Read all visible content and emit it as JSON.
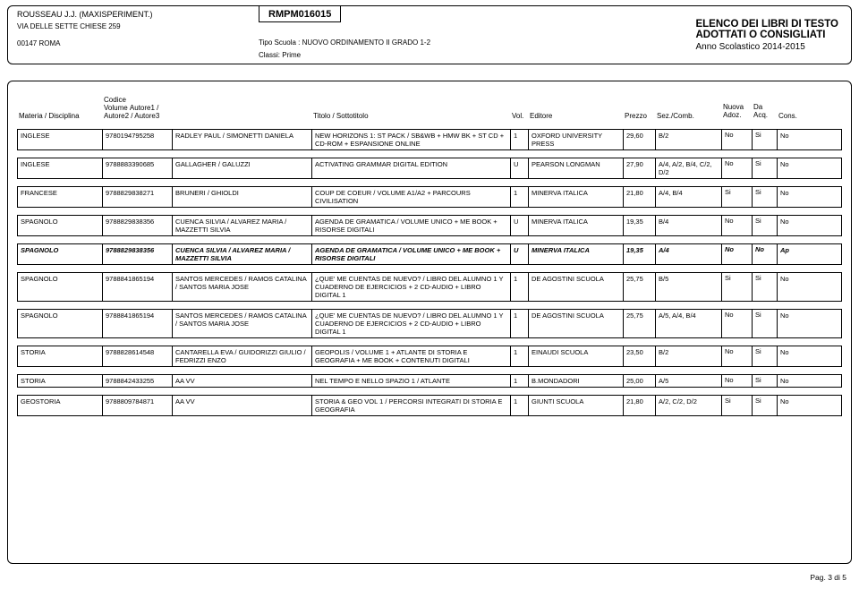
{
  "header": {
    "school_name": "ROUSSEAU J.J. (MAXISPERIMENT.)",
    "address": "VIA DELLE SETTE CHIESE 259",
    "city": "00147   ROMA",
    "code": "RMPM016015",
    "tipo": "Tipo Scuola :  NUOVO ORDINAMENTO II GRADO 1-2",
    "classi": "Classi:  Prime",
    "title1": "ELENCO DEI LIBRI DI TESTO",
    "title2": "ADOTTATI O CONSIGLIATI",
    "anno": "Anno Scolastico 2014-2015"
  },
  "columns": {
    "materia": "Materia / Disciplina",
    "codice": "Codice Volume",
    "autore": "Autore1 / Autore2 / Autore3",
    "titolo": "Titolo / Sottotitolo",
    "vol": "Vol.",
    "editore": "Editore",
    "prezzo": "Prezzo",
    "sez": "Sez./Comb.",
    "nuova1": "Nuova",
    "nuova2": "Adoz.",
    "da1": "Da",
    "da2": "Acq.",
    "cons": "Cons."
  },
  "rows": [
    {
      "mat": "INGLESE",
      "cod": "9780194795258",
      "aut": "RADLEY PAUL / SIMONETTI DANIELA",
      "tit": "NEW HORIZONS 1: ST PACK / SB&WB + HMW BK + ST CD + CD-ROM + ESPANSIONE ONLINE",
      "vol": "1",
      "edi": "OXFORD UNIVERSITY PRESS",
      "pre": "29,60",
      "sez": "B/2",
      "nuo": "No",
      "da": "Si",
      "con": "No",
      "bold": false
    },
    {
      "mat": "INGLESE",
      "cod": "9788883390685",
      "aut": "GALLAGHER / GALUZZI",
      "tit": "ACTIVATING GRAMMAR DIGITAL EDITION",
      "vol": "U",
      "edi": "PEARSON LONGMAN",
      "pre": "27,90",
      "sez": "A/4, A/2, B/4, C/2, D/2",
      "nuo": "No",
      "da": "Si",
      "con": "No",
      "bold": false
    },
    {
      "mat": "FRANCESE",
      "cod": "9788829838271",
      "aut": "BRUNERI / GHIOLDI",
      "tit": "COUP DE COEUR / VOLUME A1/A2 + PARCOURS CIVILISATION",
      "vol": "1",
      "edi": "MINERVA ITALICA",
      "pre": "21,80",
      "sez": "A/4, B/4",
      "nuo": "Si",
      "da": "Si",
      "con": "No",
      "bold": false
    },
    {
      "mat": "SPAGNOLO",
      "cod": "9788829838356",
      "aut": "CUENCA SILVIA / ALVAREZ MARIA / MAZZETTI SILVIA",
      "tit": "AGENDA DE GRAMATICA / VOLUME UNICO + ME BOOK + RISORSE DIGITALI",
      "vol": "U",
      "edi": "MINERVA ITALICA",
      "pre": "19,35",
      "sez": "B/4",
      "nuo": "No",
      "da": "Si",
      "con": "No",
      "bold": false
    },
    {
      "mat": "SPAGNOLO",
      "cod": "9788829838356",
      "aut": "CUENCA SILVIA / ALVAREZ MARIA / MAZZETTI SILVIA",
      "tit": "AGENDA DE GRAMATICA / VOLUME UNICO + ME BOOK + RISORSE DIGITALI",
      "vol": "U",
      "edi": "MINERVA ITALICA",
      "pre": "19,35",
      "sez": "A/4",
      "nuo": "No",
      "da": "No",
      "con": "Ap",
      "bold": true
    },
    {
      "mat": "SPAGNOLO",
      "cod": "9788841865194",
      "aut": "SANTOS MERCEDES / RAMOS CATALINA / SANTOS MARIA JOSE",
      "tit": "¿QUE' ME CUENTAS DE NUEVO? / LIBRO DEL ALUMNO 1 Y CUADERNO DE EJERCICIOS + 2 CD-AUDIO + LIBRO DIGITAL 1",
      "vol": "1",
      "edi": "DE AGOSTINI SCUOLA",
      "pre": "25,75",
      "sez": "B/5",
      "nuo": "Si",
      "da": "Si",
      "con": "No",
      "bold": false
    },
    {
      "mat": "SPAGNOLO",
      "cod": "9788841865194",
      "aut": "SANTOS MERCEDES / RAMOS CATALINA / SANTOS MARIA JOSE",
      "tit": "¿QUE' ME CUENTAS DE NUEVO? / LIBRO DEL ALUMNO 1 Y CUADERNO DE EJERCICIOS + 2 CD-AUDIO + LIBRO DIGITAL 1",
      "vol": "1",
      "edi": "DE AGOSTINI SCUOLA",
      "pre": "25,75",
      "sez": "A/5, A/4, B/4",
      "nuo": "No",
      "da": "Si",
      "con": "No",
      "bold": false
    },
    {
      "mat": "STORIA",
      "cod": "9788828614548",
      "aut": "CANTARELLA EVA / GUIDORIZZI GIULIO / FEDRIZZI ENZO",
      "tit": "GEOPOLIS / VOLUME 1 + ATLANTE DI STORIA E GEOGRAFIA + ME BOOK + CONTENUTI DIGITALI",
      "vol": "1",
      "edi": "EINAUDI SCUOLA",
      "pre": "23,50",
      "sez": "B/2",
      "nuo": "No",
      "da": "Si",
      "con": "No",
      "bold": false
    },
    {
      "mat": "STORIA",
      "cod": "9788842433255",
      "aut": "AA VV",
      "tit": "NEL TEMPO E NELLO SPAZIO 1 / ATLANTE",
      "vol": "1",
      "edi": "B.MONDADORI",
      "pre": "25,00",
      "sez": "A/5",
      "nuo": "No",
      "da": "Si",
      "con": "No",
      "bold": false
    },
    {
      "mat": "GEOSTORIA",
      "cod": "9788809784871",
      "aut": "AA VV",
      "tit": "STORIA & GEO VOL 1 / PERCORSI INTEGRATI DI STORIA E GEOGRAFIA",
      "vol": "1",
      "edi": "GIUNTI SCUOLA",
      "pre": "21,80",
      "sez": "A/2, C/2, D/2",
      "nuo": "Si",
      "da": "Si",
      "con": "No",
      "bold": false
    }
  ],
  "footer": "Pag. 3 di 5"
}
